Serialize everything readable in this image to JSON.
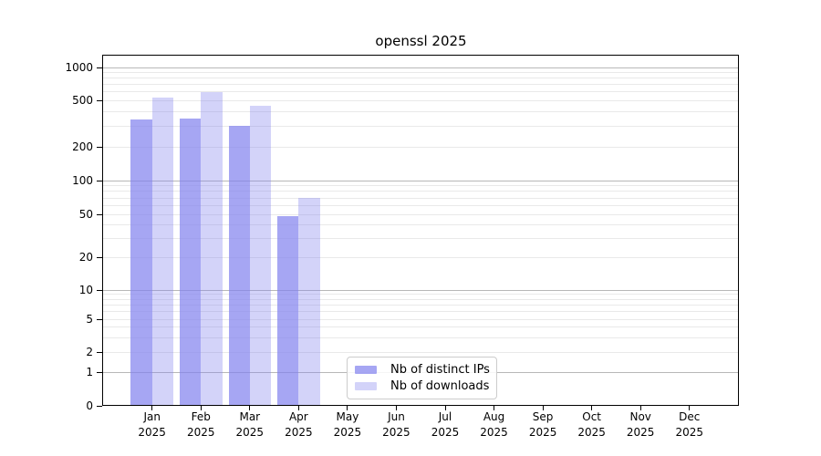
{
  "chart_data": {
    "type": "bar",
    "title": "openssl 2025",
    "yscale": "log",
    "grid": "horizontal",
    "legend_position": "lower center inside plot",
    "y_ticks": [
      0,
      1,
      2,
      5,
      10,
      20,
      50,
      100,
      200,
      500,
      1000
    ],
    "x_tick_months": [
      "Jan",
      "Feb",
      "Mar",
      "Apr",
      "May",
      "Jun",
      "Jul",
      "Aug",
      "Sep",
      "Oct",
      "Nov",
      "Dec"
    ],
    "x_tick_year": "2025",
    "categories": [
      "Jan 2025",
      "Feb 2025",
      "Mar 2025",
      "Apr 2025",
      "May 2025",
      "Jun 2025",
      "Jul 2025",
      "Aug 2025",
      "Sep 2025",
      "Oct 2025",
      "Nov 2025",
      "Dec 2025"
    ],
    "series": [
      {
        "name": "Nb of distinct IPs",
        "color": "#8080ee",
        "alpha": 0.7,
        "values": [
          340,
          350,
          300,
          48,
          0,
          0,
          0,
          0,
          0,
          0,
          0,
          0
        ]
      },
      {
        "name": "Nb of downloads",
        "color": "#8080ee",
        "alpha": 0.35,
        "values": [
          530,
          600,
          450,
          70,
          0,
          0,
          0,
          0,
          0,
          0,
          0,
          0
        ]
      }
    ],
    "colors": {
      "bar_base": "#8080ee",
      "grid_major": "#b8b8b8",
      "grid_minor": "#e9e9e9",
      "axis": "#000000"
    }
  }
}
